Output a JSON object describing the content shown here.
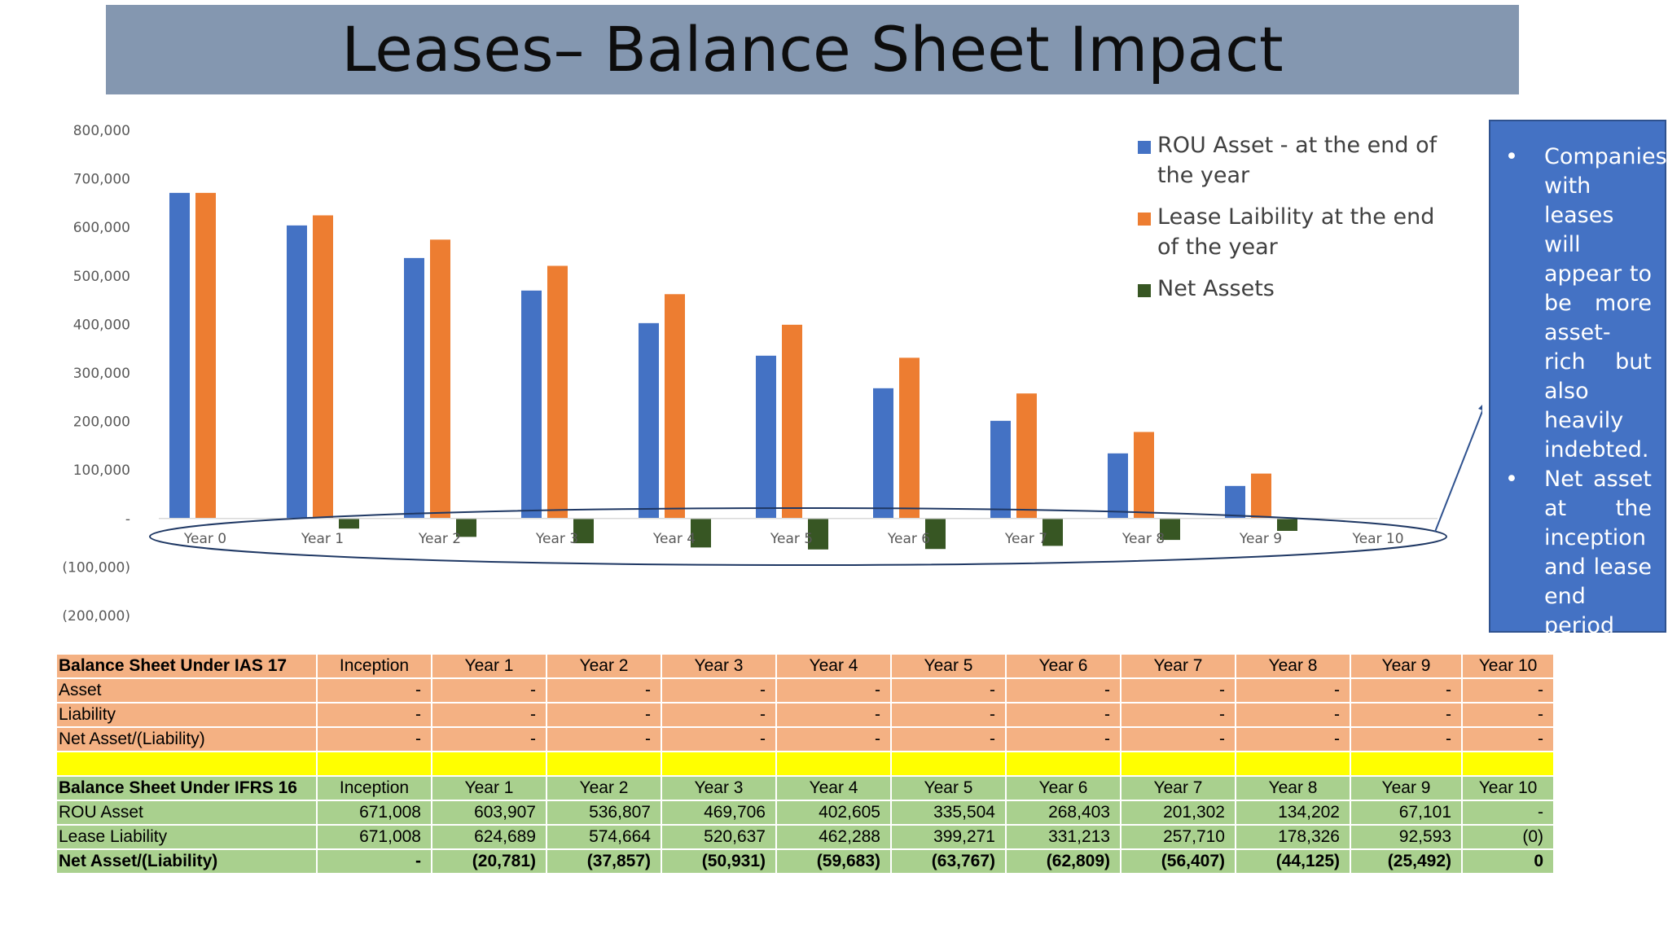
{
  "slide": {
    "title": "Leases– Balance Sheet Impact"
  },
  "chart_data": {
    "type": "bar",
    "categories": [
      "Year 0",
      "Year 1",
      "Year 2",
      "Year 3",
      "Year 4",
      "Year 5",
      "Year 6",
      "Year 7",
      "Year 8",
      "Year 9",
      "Year 10"
    ],
    "series": [
      {
        "name": "ROU Asset - at the end of the year",
        "color": "#4472c4",
        "values": [
          671008,
          603907,
          536807,
          469706,
          402605,
          335504,
          268403,
          201302,
          134202,
          67101,
          0
        ]
      },
      {
        "name": "Lease Laibility at the end of the year",
        "color": "#ed7d31",
        "values": [
          671008,
          624689,
          574664,
          520637,
          462288,
          399271,
          331213,
          257710,
          178326,
          92593,
          0
        ]
      },
      {
        "name": "Net Assets",
        "color": "#375623",
        "values": [
          0,
          -20781,
          -37857,
          -50931,
          -59683,
          -63767,
          -62809,
          -56407,
          -44125,
          -25492,
          0
        ]
      }
    ],
    "yticks": [
      "800,000",
      "700,000",
      "600,000",
      "500,000",
      "400,000",
      "300,000",
      "200,000",
      "100,000",
      "-",
      "(100,000)",
      "(200,000)"
    ],
    "ylim": [
      -200000,
      800000
    ],
    "legend_position": "top-right",
    "grid": false,
    "annotation": "ellipse around category axis with arrow to note box"
  },
  "note": {
    "bullets": [
      "Companies with leases will appear to be more asset-rich but also heavily indebted.",
      "Net asset at the inception and lease end period will be zero on account of lease."
    ]
  },
  "table_ias17": {
    "header": [
      "Balance Sheet Under IAS 17",
      "Inception",
      "Year 1",
      "Year 2",
      "Year 3",
      "Year 4",
      "Year 5",
      "Year 6",
      "Year 7",
      "Year 8",
      "Year 9",
      "Year 10"
    ],
    "rows": [
      {
        "label": "Asset",
        "cells": [
          "-",
          "-",
          "-",
          "-",
          "-",
          "-",
          "-",
          "-",
          "-",
          "-",
          "-"
        ]
      },
      {
        "label": "Liability",
        "cells": [
          "-",
          "-",
          "-",
          "-",
          "-",
          "-",
          "-",
          "-",
          "-",
          "-",
          "-"
        ]
      },
      {
        "label": "Net Asset/(Liability)",
        "cells": [
          "-",
          "-",
          "-",
          "-",
          "-",
          "-",
          "-",
          "-",
          "-",
          "-",
          "-"
        ]
      }
    ]
  },
  "table_ifrs16": {
    "header": [
      "Balance Sheet Under IFRS 16",
      "Inception",
      "Year 1",
      "Year 2",
      "Year 3",
      "Year 4",
      "Year 5",
      "Year 6",
      "Year 7",
      "Year 8",
      "Year 9",
      "Year 10"
    ],
    "rows": [
      {
        "label": "ROU Asset",
        "cells": [
          "671,008",
          "603,907",
          "536,807",
          "469,706",
          "402,605",
          "335,504",
          "268,403",
          "201,302",
          "134,202",
          "67,101",
          "-"
        ]
      },
      {
        "label": "Lease Liability",
        "cells": [
          "671,008",
          "624,689",
          "574,664",
          "520,637",
          "462,288",
          "399,271",
          "331,213",
          "257,710",
          "178,326",
          "92,593",
          "(0)"
        ]
      },
      {
        "label": "Net Asset/(Liability)",
        "cells": [
          "-",
          "(20,781)",
          "(37,857)",
          "(50,931)",
          "(59,683)",
          "(63,767)",
          "(62,809)",
          "(56,407)",
          "(44,125)",
          "(25,492)",
          "0"
        ]
      }
    ]
  }
}
